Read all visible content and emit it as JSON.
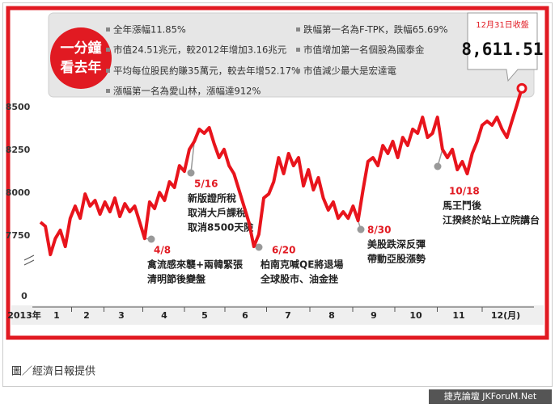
{
  "header": {
    "badge": [
      "一分鐘",
      "看去年"
    ],
    "facts": [
      "全年漲幅11.85%",
      "市值24.51兆元，較2012年增加3.16兆元",
      "平均每位股民約賺35萬元，較去年增52.17%",
      "漲幅第一名為愛山林，漲幅達912%",
      "跌幅第一名為F-TPK，跌幅65.69%",
      "市值增加第一名個股為國泰金",
      "市值減少最大是宏達電"
    ],
    "close_label": "12月31日收盤"
  },
  "chart_data": {
    "type": "line",
    "color": "#e8141c",
    "values": [
      7830,
      7806,
      7641,
      7735,
      7783,
      7688,
      7853,
      7924,
      7853,
      7995,
      7924,
      7957,
      7877,
      7948,
      7891,
      7971,
      7863,
      7938,
      7891,
      7924,
      7830,
      7735,
      7948,
      7910,
      8004,
      7957,
      8066,
      8033,
      8160,
      8127,
      8255,
      8302,
      8373,
      8349,
      8382,
      8288,
      8207,
      8255,
      8160,
      8113,
      8019,
      7924,
      7830,
      7688,
      7759,
      7971,
      7995,
      8066,
      8207,
      8113,
      8231,
      8160,
      8207,
      8042,
      8137,
      8019,
      8090,
      7971,
      7901,
      7948,
      7853,
      7891,
      7853,
      7924,
      7839,
      8019,
      8184,
      8207,
      8160,
      8278,
      8231,
      8302,
      8207,
      8325,
      8278,
      8373,
      8349,
      8443,
      8325,
      8349,
      8443,
      8255,
      8207,
      8255,
      8137,
      8184,
      8113,
      8231,
      8302,
      8396,
      8420,
      8396,
      8443,
      8373,
      8325,
      8420,
      8514,
      8611.51
    ],
    "last_value_label": "8,611.51",
    "ylim": [
      7500,
      8750
    ],
    "yticks": [
      7750,
      8000,
      8250,
      8500
    ],
    "axis_break_tick": 0,
    "x_labels": [
      "2013年",
      "1",
      "2",
      "3",
      "4",
      "5",
      "6",
      "7",
      "8",
      "9",
      "10",
      "11",
      "12(月)"
    ],
    "annotations": [
      {
        "date": "4/8",
        "lines": [
          "禽流感來襲+兩韓緊張",
          "清明節後變盤"
        ]
      },
      {
        "date": "5/16",
        "lines": [
          "新版證所稅",
          "取消大戶課稅",
          "取消8500天險"
        ]
      },
      {
        "date": "6/20",
        "lines": [
          "柏南克喊QE將退場",
          "全球股市、油金挫"
        ]
      },
      {
        "date": "8/30",
        "lines": [
          "美股跌深反彈",
          "帶動亞股漲勢"
        ]
      },
      {
        "date": "10/18",
        "lines": [
          "馬王鬥後",
          "江揆終於站上立院講台"
        ]
      }
    ]
  },
  "footer": {
    "source": "圖／經濟日報提供",
    "watermark": "捷克論壇 JKForuM.Net"
  }
}
